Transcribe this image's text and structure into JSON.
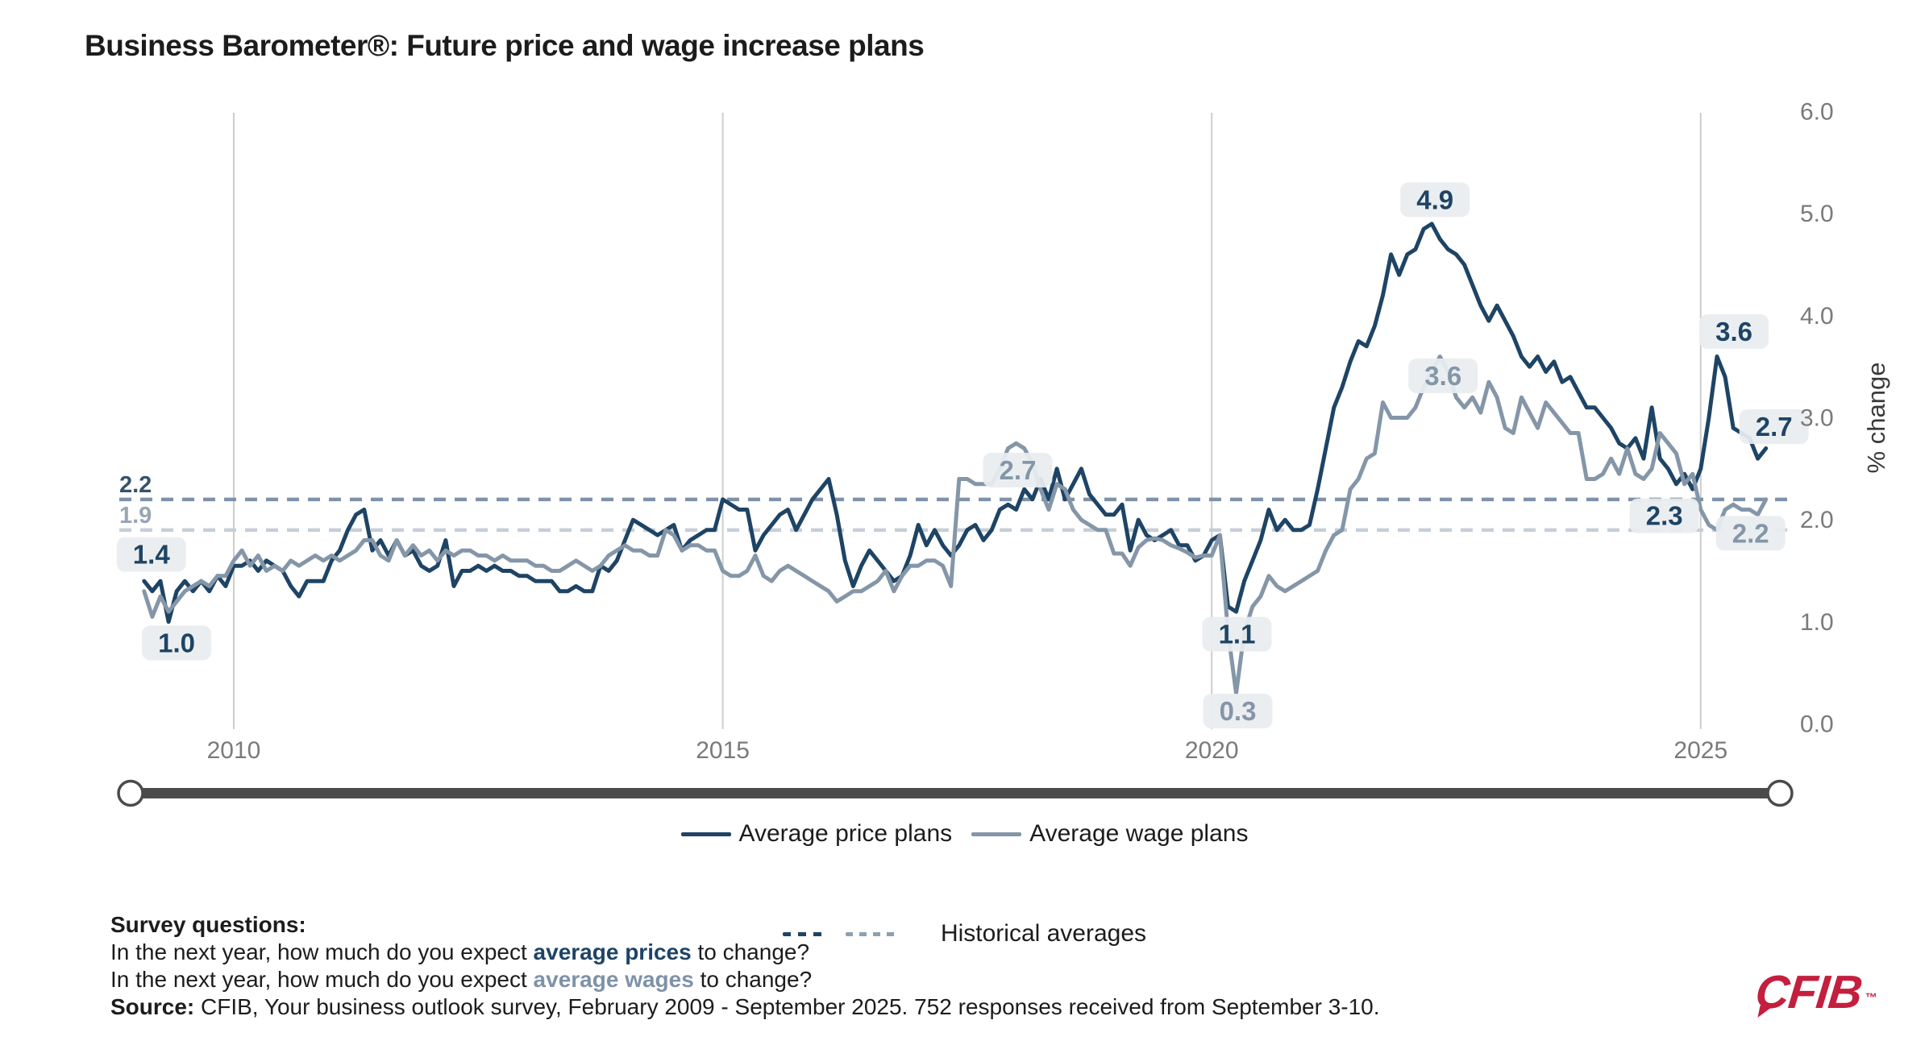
{
  "title": "Business Barometer®: Future price and wage increase plans",
  "colors": {
    "price_navy": "#1e4465",
    "wage_slate": "#8496a8",
    "price_avg_dash": "#7e93a9",
    "wage_avg_dash": "#c6cfd8",
    "chip_bg": "#e9edf0",
    "gridline": "#cdcdcd",
    "axis_text": "#7a7a7a",
    "slider": "#4b4b4b",
    "logo_red": "#c41f3e"
  },
  "chart_data": {
    "type": "line",
    "title": "Business Barometer®: Future price and wage increase plans",
    "x_axis": {
      "gridline_years": [
        2010,
        2015,
        2020,
        2025
      ],
      "labels": [
        "2010",
        "2015",
        "2020",
        "2025"
      ],
      "range_start": "February 2009",
      "range_end": "September 2025"
    },
    "y_axis": {
      "title": "% change",
      "ticks": [
        "0.0",
        "1.0",
        "2.0",
        "3.0",
        "4.0",
        "5.0",
        "6.0"
      ],
      "min": 0,
      "max": 6,
      "grid": false
    },
    "legend": {
      "historical_label": "Historical averages"
    },
    "series": [
      {
        "name": "Average price plans",
        "color": "#1e4465",
        "start_year": 2009,
        "start_month": 2,
        "values": [
          1.4,
          1.3,
          1.4,
          1.0,
          1.3,
          1.4,
          1.3,
          1.4,
          1.3,
          1.45,
          1.35,
          1.55,
          1.55,
          1.6,
          1.5,
          1.6,
          1.55,
          1.5,
          1.35,
          1.25,
          1.4,
          1.4,
          1.4,
          1.6,
          1.7,
          1.9,
          2.05,
          2.1,
          1.7,
          1.8,
          1.65,
          1.8,
          1.65,
          1.7,
          1.55,
          1.5,
          1.55,
          1.8,
          1.35,
          1.5,
          1.5,
          1.55,
          1.5,
          1.55,
          1.5,
          1.5,
          1.45,
          1.45,
          1.4,
          1.4,
          1.4,
          1.3,
          1.3,
          1.35,
          1.3,
          1.3,
          1.55,
          1.5,
          1.6,
          1.8,
          2.0,
          1.95,
          1.9,
          1.85,
          1.9,
          1.95,
          1.7,
          1.8,
          1.85,
          1.9,
          1.9,
          2.2,
          2.15,
          2.1,
          2.1,
          1.7,
          1.85,
          1.95,
          2.05,
          2.1,
          1.9,
          2.05,
          2.2,
          2.3,
          2.4,
          2.05,
          1.6,
          1.35,
          1.55,
          1.7,
          1.6,
          1.5,
          1.4,
          1.45,
          1.65,
          1.95,
          1.75,
          1.9,
          1.75,
          1.65,
          1.75,
          1.9,
          1.95,
          1.8,
          1.9,
          2.1,
          2.15,
          2.1,
          2.3,
          2.2,
          2.4,
          2.2,
          2.5,
          2.2,
          2.35,
          2.5,
          2.25,
          2.15,
          2.05,
          2.05,
          2.15,
          1.7,
          2.0,
          1.85,
          1.8,
          1.85,
          1.9,
          1.75,
          1.75,
          1.6,
          1.65,
          1.8,
          1.85,
          1.15,
          1.1,
          1.4,
          1.6,
          1.8,
          2.1,
          1.9,
          2.0,
          1.9,
          1.9,
          1.95,
          2.3,
          2.7,
          3.1,
          3.3,
          3.55,
          3.75,
          3.7,
          3.9,
          4.2,
          4.6,
          4.4,
          4.6,
          4.65,
          4.85,
          4.9,
          4.75,
          4.65,
          4.6,
          4.5,
          4.3,
          4.1,
          3.95,
          4.1,
          3.95,
          3.8,
          3.6,
          3.5,
          3.6,
          3.45,
          3.55,
          3.35,
          3.4,
          3.25,
          3.1,
          3.1,
          3.0,
          2.9,
          2.75,
          2.7,
          2.8,
          2.6,
          3.1,
          2.6,
          2.5,
          2.35,
          2.45,
          2.3,
          2.5,
          3.0,
          3.6,
          3.4,
          2.9,
          2.85,
          2.8,
          2.6,
          2.7
        ]
      },
      {
        "name": "Average wage plans",
        "color": "#8496a8",
        "start_year": 2009,
        "start_month": 2,
        "values": [
          1.3,
          1.05,
          1.25,
          1.1,
          1.2,
          1.3,
          1.35,
          1.4,
          1.35,
          1.45,
          1.45,
          1.6,
          1.7,
          1.55,
          1.65,
          1.5,
          1.55,
          1.5,
          1.6,
          1.55,
          1.6,
          1.65,
          1.6,
          1.65,
          1.6,
          1.65,
          1.7,
          1.8,
          1.8,
          1.65,
          1.6,
          1.8,
          1.65,
          1.75,
          1.65,
          1.7,
          1.6,
          1.7,
          1.65,
          1.7,
          1.7,
          1.65,
          1.65,
          1.6,
          1.65,
          1.6,
          1.6,
          1.6,
          1.55,
          1.55,
          1.5,
          1.5,
          1.55,
          1.6,
          1.55,
          1.5,
          1.55,
          1.65,
          1.7,
          1.75,
          1.7,
          1.7,
          1.65,
          1.65,
          1.9,
          1.85,
          1.7,
          1.75,
          1.75,
          1.7,
          1.7,
          1.5,
          1.45,
          1.45,
          1.5,
          1.65,
          1.45,
          1.4,
          1.5,
          1.55,
          1.5,
          1.45,
          1.4,
          1.35,
          1.3,
          1.2,
          1.25,
          1.3,
          1.3,
          1.35,
          1.4,
          1.5,
          1.3,
          1.45,
          1.55,
          1.55,
          1.6,
          1.6,
          1.55,
          1.35,
          2.4,
          2.4,
          2.35,
          2.35,
          2.35,
          2.5,
          2.7,
          2.75,
          2.7,
          2.55,
          2.3,
          2.1,
          2.35,
          2.3,
          2.1,
          2.0,
          1.95,
          1.9,
          1.9,
          1.67,
          1.67,
          1.55,
          1.73,
          1.8,
          1.82,
          1.8,
          1.75,
          1.72,
          1.68,
          1.63,
          1.65,
          1.65,
          1.85,
          0.9,
          0.3,
          0.9,
          1.15,
          1.25,
          1.45,
          1.35,
          1.3,
          1.35,
          1.4,
          1.45,
          1.5,
          1.7,
          1.85,
          1.9,
          2.3,
          2.4,
          2.6,
          2.65,
          3.15,
          3.0,
          3.0,
          3.0,
          3.1,
          3.3,
          3.45,
          3.6,
          3.45,
          3.2,
          3.1,
          3.2,
          3.05,
          3.35,
          3.2,
          2.9,
          2.85,
          3.2,
          3.05,
          2.9,
          3.15,
          3.05,
          2.95,
          2.85,
          2.85,
          2.4,
          2.4,
          2.45,
          2.6,
          2.45,
          2.7,
          2.45,
          2.4,
          2.5,
          2.85,
          2.75,
          2.65,
          2.35,
          2.45,
          2.1,
          1.95,
          1.9,
          2.1,
          2.15,
          2.1,
          2.1,
          2.05,
          2.2
        ]
      }
    ],
    "averages": [
      {
        "name": "price plans historical average",
        "value": 2.2,
        "label": "2.2",
        "color": "#7e93a9",
        "label_color": "#33536e"
      },
      {
        "name": "wage plans historical average",
        "value": 1.9,
        "label": "1.9",
        "color": "#c6cfd8",
        "label_color": "#98a5b3"
      }
    ],
    "annotations": [
      {
        "label": "1.4",
        "series": 0,
        "t": 2009.083,
        "v": 1.4,
        "ox": 9,
        "oy": -33
      },
      {
        "label": "1.0",
        "series": 0,
        "t": 2009.333,
        "v": 1.0,
        "ox": 10,
        "oy": 26
      },
      {
        "label": "2.7",
        "series": 1,
        "t": 2017.917,
        "v": 2.7,
        "ox": 12,
        "oy": 27
      },
      {
        "label": "4.9",
        "series": 0,
        "t": 2022.25,
        "v": 4.9,
        "ox": 4,
        "oy": -30
      },
      {
        "label": "3.6",
        "series": 1,
        "t": 2022.333,
        "v": 3.6,
        "ox": 4,
        "oy": 24
      },
      {
        "label": "1.1",
        "series": 0,
        "t": 2020.25,
        "v": 1.1,
        "ox": 1,
        "oy": 28
      },
      {
        "label": "0.3",
        "series": 1,
        "t": 2020.25,
        "v": 0.3,
        "ox": 2,
        "oy": 22
      },
      {
        "label": "3.6",
        "series": 0,
        "t": 2025.167,
        "v": 3.6,
        "ox": 21,
        "oy": -31
      },
      {
        "label": "2.7",
        "series": 0,
        "t": 2025.667,
        "v": 2.7,
        "ox": 10,
        "oy": -27
      },
      {
        "label": "2.3",
        "series": 0,
        "t": 2024.917,
        "v": 2.3,
        "ox": -35,
        "oy": 33
      },
      {
        "label": "2.2",
        "series": 1,
        "t": 2025.667,
        "v": 2.2,
        "ox": -19,
        "oy": 42
      }
    ],
    "range_slider": {
      "present": true,
      "full_range": true
    }
  },
  "footer": {
    "survey_heading": "Survey questions:",
    "q1_prefix": "In the next year, how much do you expect ",
    "q1_highlight": "average prices",
    "q1_suffix": " to change?",
    "q2_prefix": "In the next year, how much do you expect ",
    "q2_highlight": "average wages",
    "q2_suffix": " to change?",
    "source_label": "Source:",
    "source_text": " CFIB, Your business outlook survey, February 2009 - September 2025. 752 responses received from September 3-10."
  },
  "logo": {
    "text": "CFIB",
    "tm": "™"
  }
}
